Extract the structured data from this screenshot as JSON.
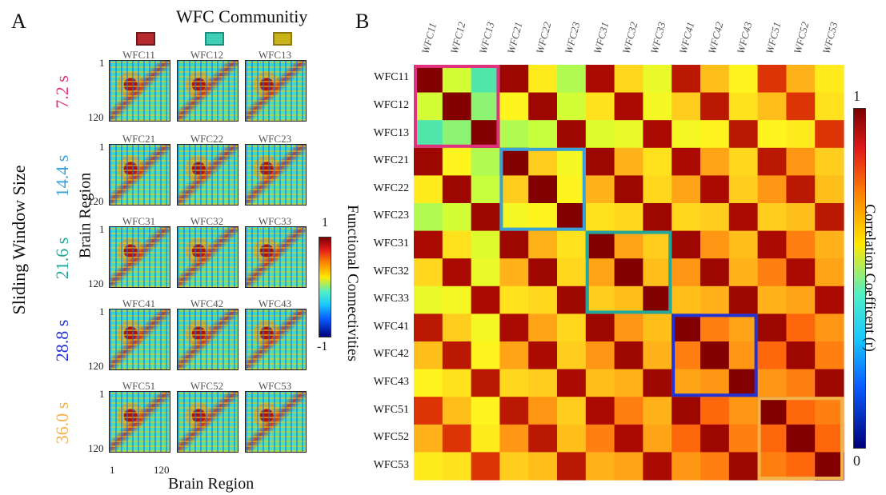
{
  "panel_a": {
    "letter": "A",
    "title": "WFC Communitiy",
    "community_colors": [
      "#b8282f",
      "#3ecfb6",
      "#c9b21a"
    ],
    "window_axis_title": "Sliding Window Size",
    "windows": [
      {
        "label": "7.2 s",
        "color": "#e0307e"
      },
      {
        "label": "14.4 s",
        "color": "#3aa0d8"
      },
      {
        "label": "21.6 s",
        "color": "#22a79a"
      },
      {
        "label": "28.8 s",
        "color": "#2233d6"
      },
      {
        "label": "36.0 s",
        "color": "#f2b24a"
      }
    ],
    "tiles": [
      [
        "WFC11",
        "WFC12",
        "WFC13"
      ],
      [
        "WFC21",
        "WFC22",
        "WFC23"
      ],
      [
        "WFC31",
        "WFC32",
        "WFC33"
      ],
      [
        "WFC41",
        "WFC42",
        "WFC43"
      ],
      [
        "WFC51",
        "WFC52",
        "WFC53"
      ]
    ],
    "y_ticks": [
      "1",
      "120"
    ],
    "x_ticks": [
      "1",
      "120"
    ],
    "x_axis_label": "Brain Region",
    "y_axis_label": "Brain Region",
    "colorbar_label": "Functional Connectivities",
    "colorbar_max": "1",
    "colorbar_min": "-1"
  },
  "panel_b": {
    "letter": "B",
    "labels": [
      "WFC11",
      "WFC12",
      "WFC13",
      "WFC21",
      "WFC22",
      "WFC23",
      "WFC31",
      "WFC32",
      "WFC33",
      "WFC41",
      "WFC42",
      "WFC43",
      "WFC51",
      "WFC52",
      "WFC53"
    ],
    "colorbar_label": "Correlation Coefficent (r)",
    "colorbar_max": "1",
    "colorbar_min": "0",
    "highlight_boxes": [
      {
        "start": 0,
        "end": 2,
        "color": "#e0307e"
      },
      {
        "start": 3,
        "end": 5,
        "color": "#3aa0d8"
      },
      {
        "start": 6,
        "end": 8,
        "color": "#22a79a"
      },
      {
        "start": 9,
        "end": 11,
        "color": "#2233d6"
      },
      {
        "start": 12,
        "end": 14,
        "color": "#f2b24a"
      }
    ],
    "matrix": [
      [
        1.0,
        0.62,
        0.5,
        0.98,
        0.72,
        0.58,
        0.97,
        0.76,
        0.66,
        0.96,
        0.8,
        0.7,
        0.94,
        0.82,
        0.72
      ],
      [
        0.62,
        1.0,
        0.55,
        0.7,
        0.98,
        0.62,
        0.74,
        0.97,
        0.68,
        0.78,
        0.96,
        0.74,
        0.8,
        0.94,
        0.74
      ],
      [
        0.5,
        0.55,
        1.0,
        0.58,
        0.6,
        0.98,
        0.64,
        0.66,
        0.97,
        0.68,
        0.7,
        0.96,
        0.7,
        0.72,
        0.94
      ],
      [
        0.98,
        0.7,
        0.58,
        1.0,
        0.78,
        0.68,
        0.98,
        0.82,
        0.74,
        0.97,
        0.84,
        0.76,
        0.96,
        0.86,
        0.78
      ],
      [
        0.72,
        0.98,
        0.6,
        0.78,
        1.0,
        0.7,
        0.82,
        0.98,
        0.76,
        0.84,
        0.97,
        0.78,
        0.86,
        0.96,
        0.8
      ],
      [
        0.58,
        0.62,
        0.98,
        0.68,
        0.7,
        1.0,
        0.74,
        0.76,
        0.98,
        0.76,
        0.78,
        0.97,
        0.78,
        0.8,
        0.96
      ],
      [
        0.97,
        0.74,
        0.64,
        0.98,
        0.82,
        0.74,
        1.0,
        0.84,
        0.78,
        0.98,
        0.86,
        0.8,
        0.97,
        0.88,
        0.82
      ],
      [
        0.76,
        0.97,
        0.66,
        0.82,
        0.98,
        0.76,
        0.84,
        1.0,
        0.8,
        0.86,
        0.98,
        0.82,
        0.88,
        0.97,
        0.84
      ],
      [
        0.66,
        0.68,
        0.97,
        0.74,
        0.76,
        0.98,
        0.78,
        0.8,
        1.0,
        0.8,
        0.82,
        0.98,
        0.82,
        0.84,
        0.97
      ],
      [
        0.96,
        0.78,
        0.68,
        0.97,
        0.84,
        0.76,
        0.98,
        0.86,
        0.8,
        1.0,
        0.88,
        0.84,
        0.98,
        0.9,
        0.86
      ],
      [
        0.8,
        0.96,
        0.7,
        0.84,
        0.97,
        0.78,
        0.86,
        0.98,
        0.82,
        0.88,
        1.0,
        0.86,
        0.9,
        0.98,
        0.88
      ],
      [
        0.7,
        0.74,
        0.96,
        0.76,
        0.78,
        0.97,
        0.8,
        0.82,
        0.98,
        0.84,
        0.86,
        1.0,
        0.86,
        0.88,
        0.98
      ],
      [
        0.94,
        0.8,
        0.7,
        0.96,
        0.86,
        0.78,
        0.97,
        0.88,
        0.82,
        0.98,
        0.9,
        0.86,
        1.0,
        0.9,
        0.88
      ],
      [
        0.82,
        0.94,
        0.72,
        0.86,
        0.96,
        0.8,
        0.88,
        0.97,
        0.84,
        0.9,
        0.98,
        0.88,
        0.9,
        1.0,
        0.9
      ],
      [
        0.72,
        0.74,
        0.94,
        0.78,
        0.8,
        0.96,
        0.82,
        0.84,
        0.97,
        0.86,
        0.88,
        0.98,
        0.88,
        0.9,
        1.0
      ]
    ]
  }
}
